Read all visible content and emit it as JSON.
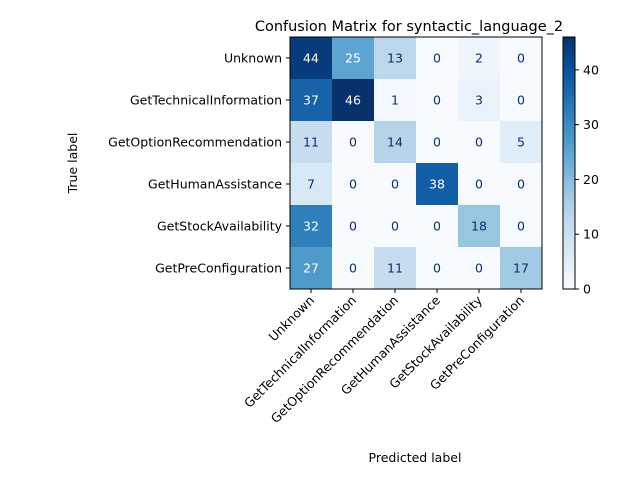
{
  "chart_data": {
    "type": "heatmap",
    "title": "Confusion Matrix for syntactic_language_2",
    "xlabel": "Predicted label",
    "ylabel": "True label",
    "x_categories": [
      "Unknown",
      "GetTechnicalInformation",
      "GetOptionRecommendation",
      "GetHumanAssistance",
      "GetStockAvailability",
      "GetPreConfiguration"
    ],
    "y_categories": [
      "Unknown",
      "GetTechnicalInformation",
      "GetOptionRecommendation",
      "GetHumanAssistance",
      "GetStockAvailability",
      "GetPreConfiguration"
    ],
    "values": [
      [
        44,
        25,
        13,
        0,
        2,
        0
      ],
      [
        37,
        46,
        1,
        0,
        3,
        0
      ],
      [
        11,
        0,
        14,
        0,
        0,
        5
      ],
      [
        7,
        0,
        0,
        38,
        0,
        0
      ],
      [
        32,
        0,
        0,
        0,
        18,
        0
      ],
      [
        27,
        0,
        11,
        0,
        0,
        17
      ]
    ],
    "colormap": "Blues",
    "vmin": 0,
    "vmax": 46,
    "colorbar_ticks": [
      0,
      10,
      20,
      30,
      40
    ]
  }
}
